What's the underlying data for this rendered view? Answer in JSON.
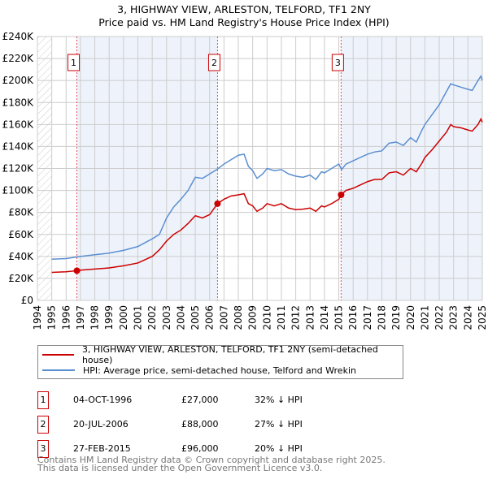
{
  "chart_data": {
    "type": "line",
    "title": "3, HIGHWAY VIEW, ARLESTON, TELFORD, TF1 2NY",
    "subtitle": "Price paid vs. HM Land Registry's House Price Index (HPI)",
    "xlim": [
      1994,
      2025
    ],
    "ylim": [
      0,
      240000
    ],
    "x_ticks": [
      "1994",
      "1995",
      "1996",
      "1997",
      "1998",
      "1999",
      "2000",
      "2001",
      "2002",
      "2003",
      "2004",
      "2005",
      "2006",
      "2007",
      "2008",
      "2009",
      "2010",
      "2011",
      "2012",
      "2013",
      "2014",
      "2015",
      "2016",
      "2017",
      "2018",
      "2019",
      "2020",
      "2021",
      "2022",
      "2023",
      "2024",
      "2025"
    ],
    "y_ticks": [
      "£0",
      "£20K",
      "£40K",
      "£60K",
      "£80K",
      "£100K",
      "£120K",
      "£140K",
      "£160K",
      "£180K",
      "£200K",
      "£220K",
      "£240K"
    ],
    "grid": true,
    "series": [
      {
        "name": "3, HIGHWAY VIEW, ARLESTON, TELFORD, TF1 2NY (semi-detached house)",
        "color": "#cc0000",
        "x": [
          1995,
          1996,
          1996.75,
          1997,
          1998,
          1999,
          2000,
          2001,
          2002,
          2002.5,
          2003,
          2003.5,
          2004,
          2004.5,
          2005,
          2005.5,
          2006,
          2006.55,
          2007,
          2007.5,
          2008,
          2008.4,
          2008.7,
          2009,
          2009.3,
          2009.7,
          2010,
          2010.5,
          2011,
          2011.5,
          2012,
          2012.5,
          2013,
          2013.4,
          2013.8,
          2014,
          2014.5,
          2015,
          2015.16,
          2015.5,
          2016,
          2016.5,
          2017,
          2017.5,
          2018,
          2018.5,
          2019,
          2019.5,
          2020,
          2020.4,
          2020.8,
          2021,
          2021.5,
          2022,
          2022.5,
          2022.8,
          2023,
          2023.5,
          2024,
          2024.3,
          2024.7,
          2024.9,
          2025
        ],
        "y": [
          25.5,
          26,
          27,
          27.5,
          28.5,
          29.5,
          31.5,
          34,
          40,
          46,
          54,
          60,
          64,
          70,
          77,
          75,
          78,
          88,
          92,
          95,
          96,
          97,
          88,
          86,
          81,
          84,
          88,
          86,
          88,
          84,
          82.5,
          83,
          84,
          81,
          86,
          85,
          88,
          92,
          96,
          100,
          102,
          105,
          108,
          110,
          110,
          116,
          117,
          114,
          120,
          117,
          125,
          130,
          137,
          145,
          153,
          160,
          158,
          157,
          155,
          154,
          160,
          165,
          162
        ]
      },
      {
        "name": "HPI: Average price, semi-detached house, Telford and Wrekin",
        "color": "#5b8fd0",
        "x": [
          1995,
          1996,
          1997,
          1998,
          1999,
          2000,
          2001,
          2002,
          2002.5,
          2003,
          2003.5,
          2004,
          2004.5,
          2005,
          2005.5,
          2006,
          2006.5,
          2007,
          2007.5,
          2008,
          2008.4,
          2008.7,
          2009,
          2009.3,
          2009.7,
          2010,
          2010.5,
          2011,
          2011.5,
          2012,
          2012.5,
          2013,
          2013.4,
          2013.8,
          2014,
          2014.5,
          2015,
          2015.2,
          2015.5,
          2016,
          2016.5,
          2017,
          2017.5,
          2018,
          2018.5,
          2019,
          2019.5,
          2020,
          2020.4,
          2020.8,
          2021,
          2021.5,
          2022,
          2022.5,
          2022.8,
          2023,
          2023.5,
          2024,
          2024.3,
          2024.7,
          2024.9,
          2025
        ],
        "y": [
          37.5,
          38,
          40,
          41.5,
          43,
          45.5,
          49,
          56,
          60,
          75,
          85,
          92,
          100,
          112,
          111,
          115,
          119,
          124,
          128,
          132,
          133,
          122,
          118,
          111,
          115,
          120,
          118,
          119,
          115,
          113,
          112,
          114,
          110,
          117,
          116,
          120,
          124,
          119,
          124,
          127,
          130,
          133,
          135,
          136,
          143,
          144,
          141,
          148,
          144,
          155,
          160,
          169,
          178,
          190,
          197,
          196,
          194,
          192,
          191,
          200,
          204,
          200
        ]
      }
    ],
    "y_unit": "£K",
    "sales": [
      {
        "label": "1",
        "x": 1996.75,
        "date": "04-OCT-1996",
        "price": "£27,000",
        "hpi": "32% ↓ HPI",
        "value": 27
      },
      {
        "label": "2",
        "x": 2006.55,
        "date": "20-JUL-2006",
        "price": "£88,000",
        "hpi": "27% ↓ HPI",
        "value": 88
      },
      {
        "label": "3",
        "x": 2015.16,
        "date": "27-FEB-2015",
        "price": "£96,000",
        "hpi": "20% ↓ HPI",
        "value": 96
      }
    ],
    "legend_placement": "below"
  },
  "footer": {
    "line1": "Contains HM Land Registry data © Crown copyright and database right 2025.",
    "line2": "This data is licensed under the Open Government Licence v3.0."
  }
}
